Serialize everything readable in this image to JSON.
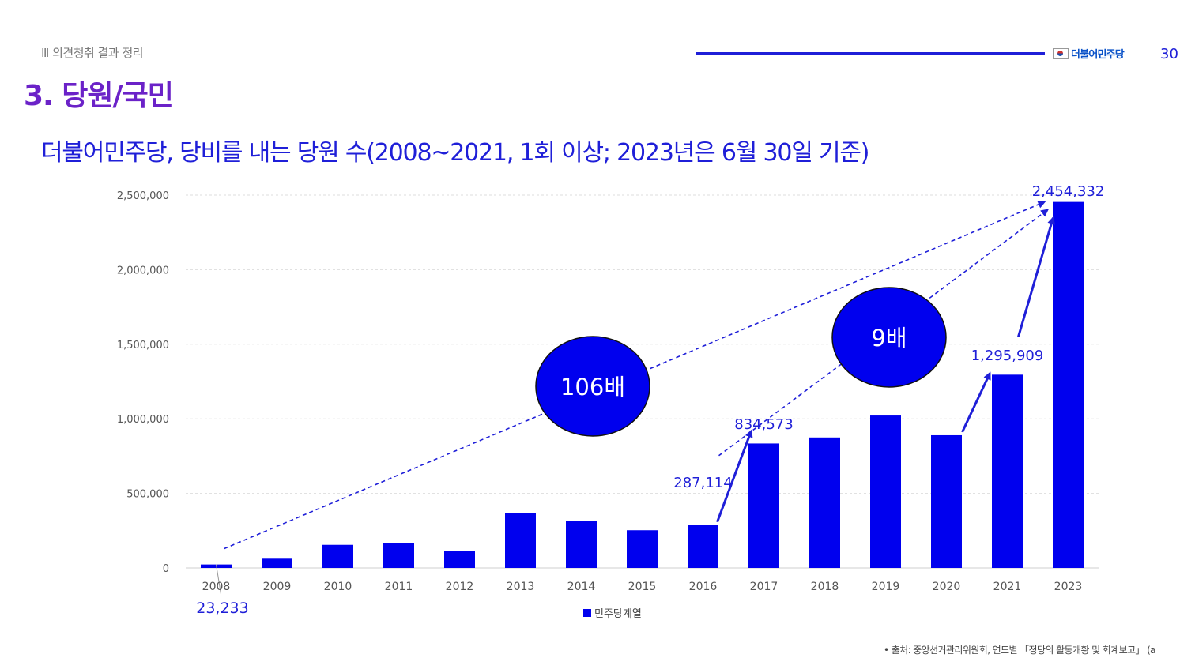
{
  "header": {
    "section_label": "Ⅲ 의견청취 결과 정리",
    "logo_text": "더불어민주당",
    "page_number": "30"
  },
  "title": "3. 당원/국민",
  "subtitle": "더불어민주당, 당비를 내는 당원 수(2008~2021, 1회 이상; 2023년은 6월 30일 기준)",
  "footnote": "• 출처: 중앙선거관리위원회, 연도별 「정당의 활동개황 및 회계보고」 (a",
  "colors": {
    "bar": "#0000ee",
    "accent": "#1f1fd8",
    "title": "#6b22c8"
  },
  "chart_data": {
    "type": "bar",
    "categories": [
      "2008",
      "2009",
      "2010",
      "2011",
      "2012",
      "2013",
      "2014",
      "2015",
      "2016",
      "2017",
      "2018",
      "2019",
      "2020",
      "2021",
      "2023"
    ],
    "series": [
      {
        "name": "민주당계열",
        "values": [
          23233,
          62000,
          155000,
          165000,
          113000,
          368000,
          313000,
          253000,
          287114,
          834573,
          875000,
          1022000,
          890000,
          1295909,
          2454332
        ]
      }
    ],
    "ylim": [
      0,
      2500000
    ],
    "yticks": [
      "0",
      "500,000",
      "1,000,000",
      "1,500,000",
      "2,000,000",
      "2,500,000"
    ],
    "grid": true,
    "legend_position": "bottom",
    "data_labels": [
      {
        "category": "2008",
        "text": "23,233"
      },
      {
        "category": "2016",
        "text": "287,114"
      },
      {
        "category": "2017",
        "text": "834,573"
      },
      {
        "category": "2021",
        "text": "1,295,909"
      },
      {
        "category": "2023",
        "text": "2,454,332"
      }
    ],
    "annotations": [
      {
        "text": "106배",
        "from": "2008",
        "to": "2023"
      },
      {
        "text": "9배",
        "from": "2016",
        "to": "2023"
      }
    ]
  }
}
